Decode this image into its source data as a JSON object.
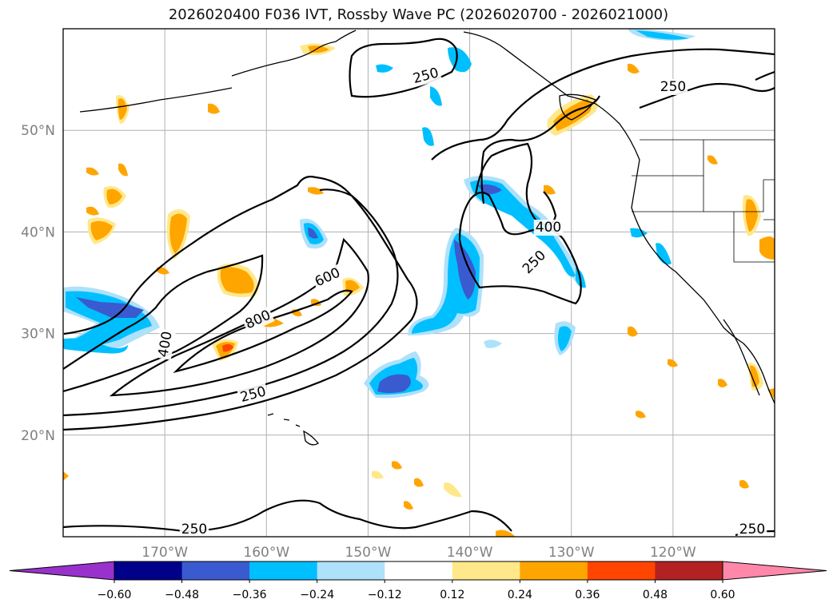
{
  "title": "2026020400 F036 IVT, Rossby Wave PC (2026020700 - 2026021000)",
  "map": {
    "extent": {
      "lon": [
        -180,
        -110
      ],
      "lat": [
        10,
        60
      ]
    },
    "lat_ticks": [
      {
        "value": 20,
        "label": "20°N"
      },
      {
        "value": 30,
        "label": "30°N"
      },
      {
        "value": 40,
        "label": "40°N"
      },
      {
        "value": 50,
        "label": "50°N"
      }
    ],
    "lon_ticks": [
      {
        "value": -170,
        "label": "170°W"
      },
      {
        "value": -160,
        "label": "160°W"
      },
      {
        "value": -150,
        "label": "150°W"
      },
      {
        "value": -140,
        "label": "140°W"
      },
      {
        "value": -130,
        "label": "130°W"
      },
      {
        "value": -120,
        "label": "120°W"
      }
    ],
    "grid": true,
    "contour_labels": [
      "250",
      "250",
      "250",
      "250",
      "250",
      "250",
      "400",
      "400",
      "600",
      "800"
    ]
  },
  "colorbar": {
    "ticks": [
      "−0.60",
      "−0.48",
      "−0.36",
      "−0.24",
      "−0.12",
      "0.12",
      "0.24",
      "0.36",
      "0.48",
      "0.60"
    ],
    "colors": {
      "under": "#9932cc",
      "bins": [
        "#00008b",
        "#3a5bd0",
        "#00bfff",
        "#aee1fa",
        "#ffffff",
        "#ffe88a",
        "#ffa500",
        "#ff4500",
        "#b22222"
      ],
      "over": "#ff88aa"
    }
  }
}
